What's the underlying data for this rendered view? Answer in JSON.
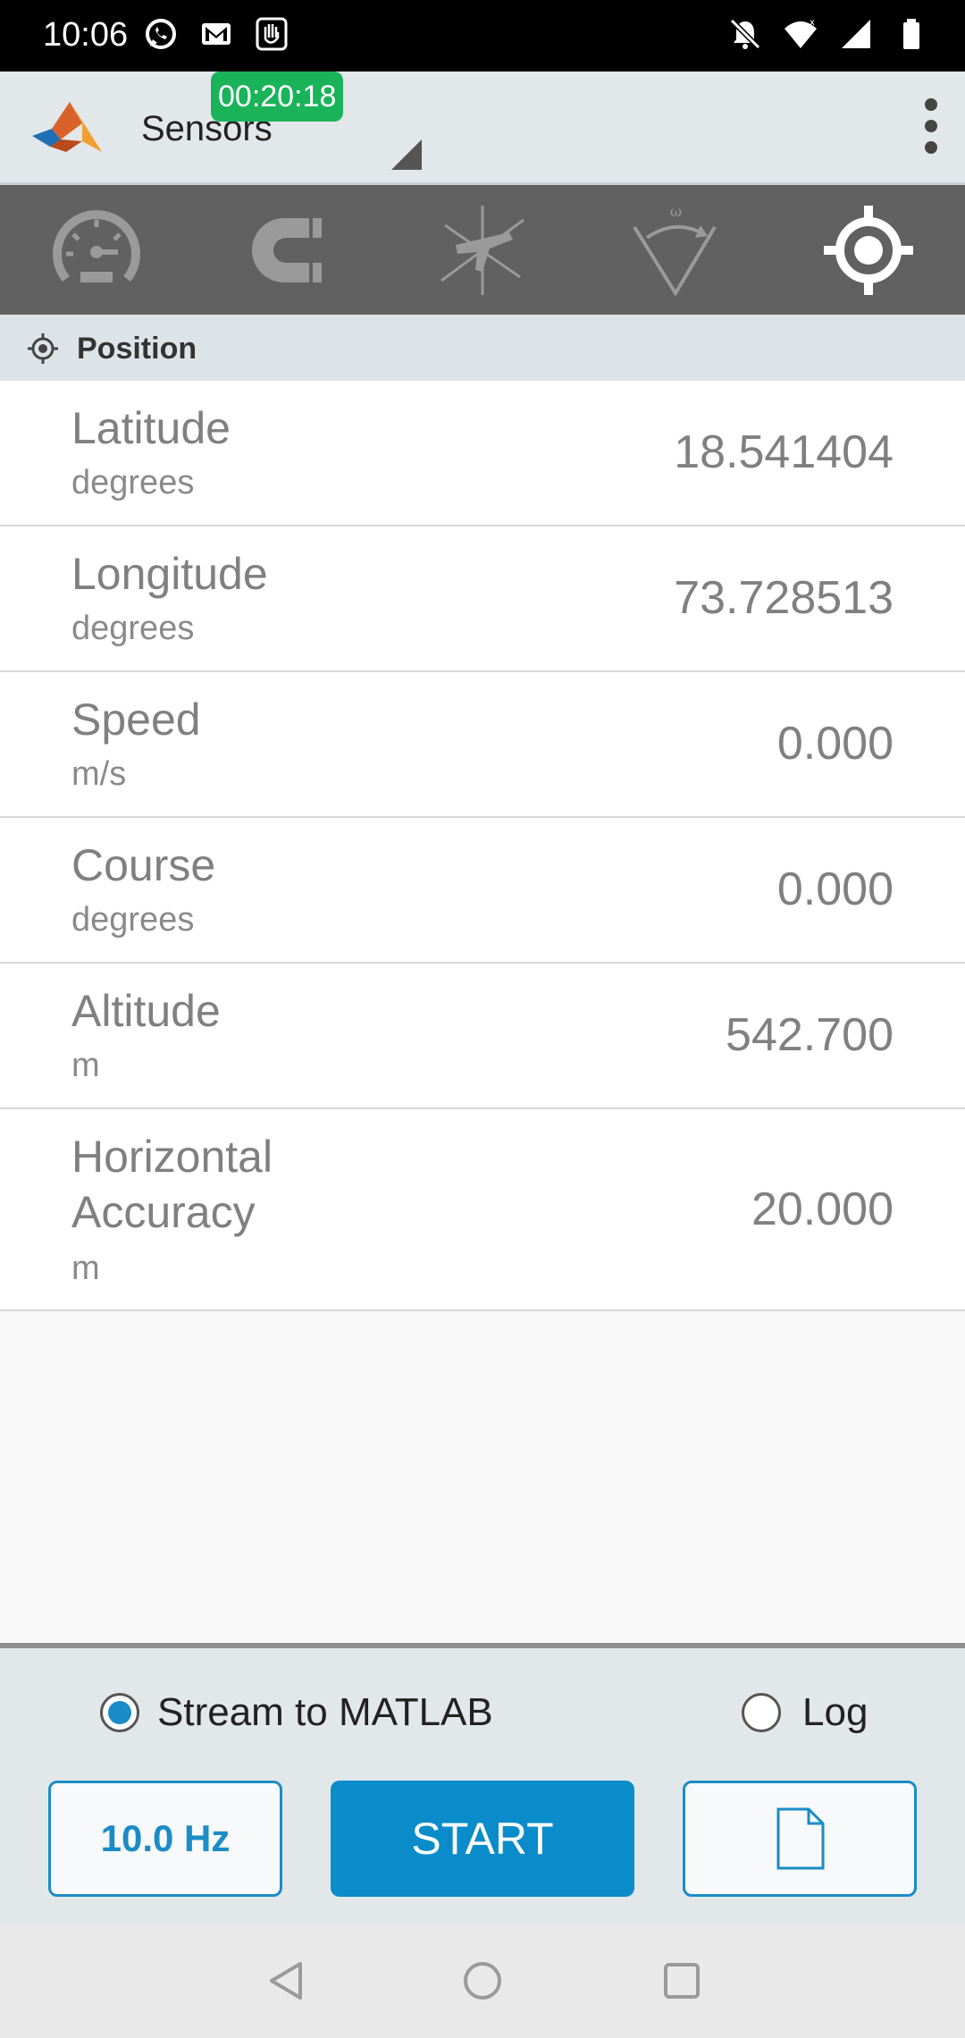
{
  "status_bar": {
    "time": "10:06",
    "left_icons": [
      "whatsapp-icon",
      "gmail-icon",
      "hand-icon"
    ],
    "right_icons": [
      "bell-off-icon",
      "wifi-icon",
      "signal-icon",
      "battery-icon"
    ]
  },
  "app_bar": {
    "title": "Sensors",
    "timer": "00:20:18",
    "logo": "matlab-logo"
  },
  "sensor_tabs": [
    {
      "name": "acceleration",
      "icon": "speedometer-icon",
      "active": false
    },
    {
      "name": "magnetic-field",
      "icon": "magnet-icon",
      "active": false
    },
    {
      "name": "orientation",
      "icon": "airplane-axes-icon",
      "active": false
    },
    {
      "name": "angular-velocity",
      "icon": "angular-velocity-icon",
      "active": false
    },
    {
      "name": "position",
      "icon": "crosshair-icon",
      "active": true
    }
  ],
  "section": {
    "title": "Position"
  },
  "rows": [
    {
      "label": "Latitude",
      "unit": "degrees",
      "value": "18.541404"
    },
    {
      "label": "Longitude",
      "unit": "degrees",
      "value": "73.728513"
    },
    {
      "label": "Speed",
      "unit": "m/s",
      "value": "0.000"
    },
    {
      "label": "Course",
      "unit": "degrees",
      "value": "0.000"
    },
    {
      "label": "Altitude",
      "unit": "m",
      "value": "542.700"
    },
    {
      "label": "Horizontal Accuracy",
      "unit": "m",
      "value": "20.000"
    }
  ],
  "bottom": {
    "stream_label": "Stream to MATLAB",
    "stream_checked": true,
    "log_label": "Log",
    "log_checked": false,
    "rate_label": "10.0 Hz",
    "start_label": "START"
  },
  "colors": {
    "accent": "#0a8ccb",
    "timer_green": "#1ab35a",
    "tab_bar": "#616161"
  }
}
